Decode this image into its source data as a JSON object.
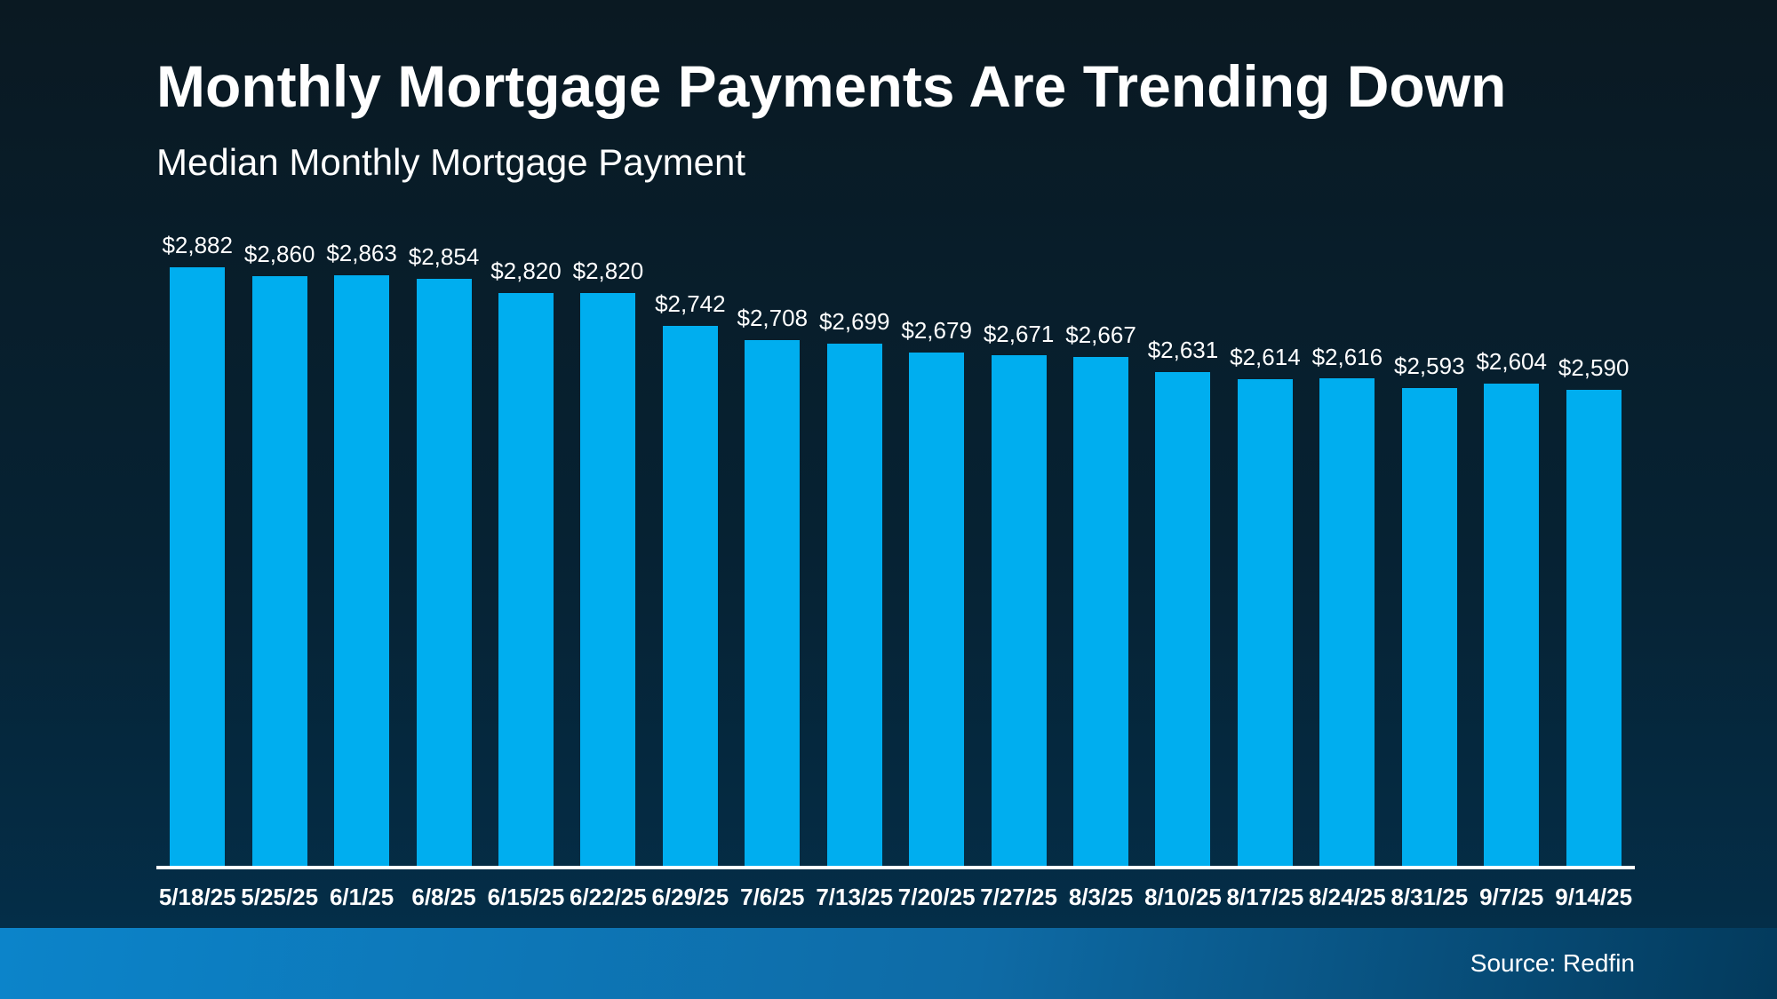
{
  "page": {
    "title": "Monthly Mortgage Payments Are Trending Down",
    "subtitle": "Median Monthly Mortgage Payment",
    "source_label": "Source: Redfin"
  },
  "colors": {
    "background_top": "#0a1922",
    "background_mid": "#062233",
    "background_bottom": "#04304c",
    "bar_fill": "#00aeef",
    "axis_line": "#ffffff",
    "text": "#ffffff",
    "footer_gradient_left": "#0c84ca",
    "footer_gradient_mid": "#0e6ba6",
    "footer_gradient_right": "#033a5c"
  },
  "chart_data": {
    "type": "bar",
    "title": "Monthly Mortgage Payments Are Trending Down",
    "subtitle": "Median Monthly Mortgage Payment",
    "source": "Source: Redfin",
    "categories": [
      "5/18/25",
      "5/25/25",
      "6/1/25",
      "6/8/25",
      "6/15/25",
      "6/22/25",
      "6/29/25",
      "7/6/25",
      "7/13/25",
      "7/20/25",
      "7/27/25",
      "8/3/25",
      "8/10/25",
      "8/17/25",
      "8/24/25",
      "8/31/25",
      "9/7/25",
      "9/14/25"
    ],
    "values": [
      2882,
      2860,
      2863,
      2854,
      2820,
      2820,
      2742,
      2708,
      2699,
      2679,
      2671,
      2667,
      2631,
      2614,
      2616,
      2593,
      2604,
      2590
    ],
    "value_labels": [
      "$2,882",
      "$2,860",
      "$2,863",
      "$2,854",
      "$2,820",
      "$2,820",
      "$2,742",
      "$2,708",
      "$2,699",
      "$2,679",
      "$2,671",
      "$2,667",
      "$2,631",
      "$2,614",
      "$2,616",
      "$2,593",
      "$2,604",
      "$2,590"
    ],
    "xlabel": "",
    "ylabel": "",
    "ylim": [
      1450,
      2890
    ],
    "grid": false,
    "legend_position": "none",
    "bar_color": "#00aeef",
    "value_labels_position": "above-bars",
    "x_axis_line": true
  }
}
